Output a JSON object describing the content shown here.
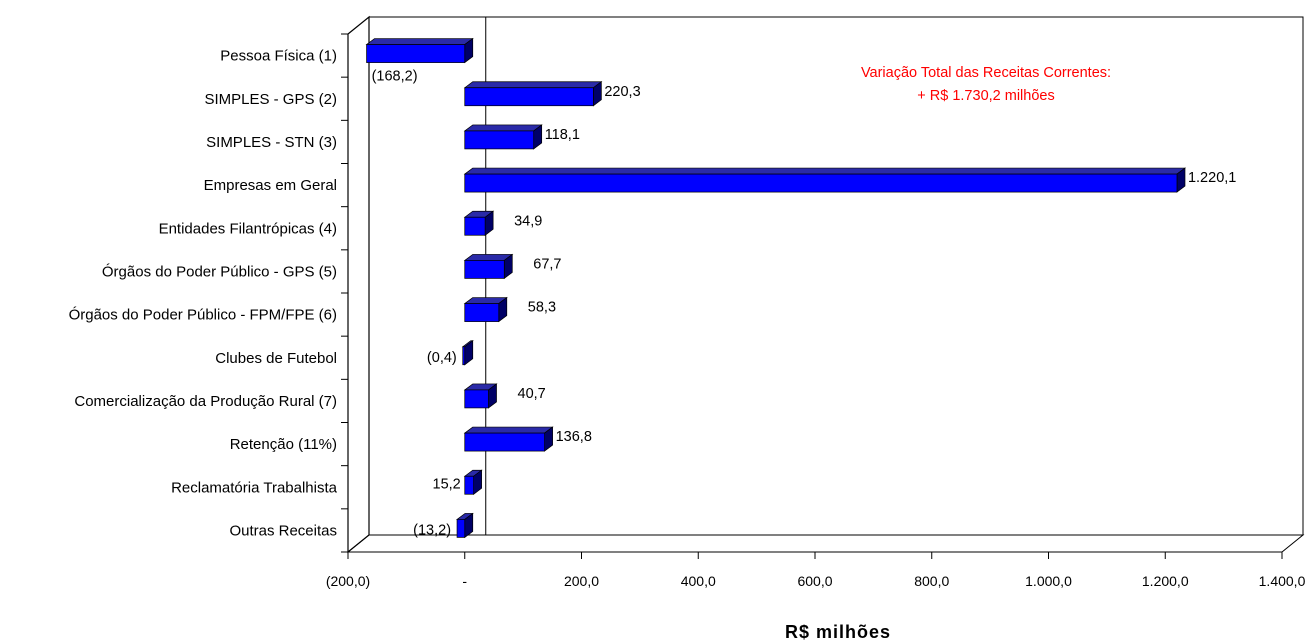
{
  "chart_data": {
    "type": "bar",
    "orientation": "horizontal",
    "style": "3d",
    "categories": [
      "Pessoa Física (1)",
      "SIMPLES - GPS (2)",
      "SIMPLES - STN (3)",
      "Empresas em Geral",
      "Entidades Filantrópicas (4)",
      "Órgãos do Poder Público - GPS (5)",
      "Órgãos do Poder Público - FPM/FPE (6)",
      "Clubes de Futebol",
      "Comercialização da Produção Rural (7)",
      "Retenção (11%)",
      "Reclamatória Trabalhista",
      "Outras Receitas"
    ],
    "values": [
      -168.2,
      220.3,
      118.1,
      1220.1,
      34.9,
      67.7,
      58.3,
      -0.4,
      40.7,
      136.8,
      15.2,
      -13.2
    ],
    "value_labels": [
      "(168,2)",
      "220,3",
      "118,1",
      "1.220,1",
      "34,9",
      "67,7",
      "58,3",
      "(0,4)",
      "40,7",
      "136,8",
      "15,2",
      "(13,2)"
    ],
    "xlim": [
      -200,
      1400
    ],
    "x_ticks": [
      -200,
      0,
      200,
      400,
      600,
      800,
      1000,
      1200,
      1400
    ],
    "x_tick_labels": [
      "(200,0)",
      "-",
      "200,0",
      "400,0",
      "600,0",
      "800,0",
      "1.000,0",
      "1.200,0",
      "1.400,0"
    ],
    "xlabel": "R$ milhões",
    "grid": false,
    "legend": "none",
    "annotation": {
      "lines": [
        "Variação Total das Receitas Correntes:",
        "+ R$ 1.730,2 milhões"
      ],
      "color": "#ff0000"
    },
    "colors": {
      "bar_front": "#0000ff",
      "bar_top": "#2a2aa8",
      "bar_side": "#000066",
      "axis": "#000000"
    }
  }
}
